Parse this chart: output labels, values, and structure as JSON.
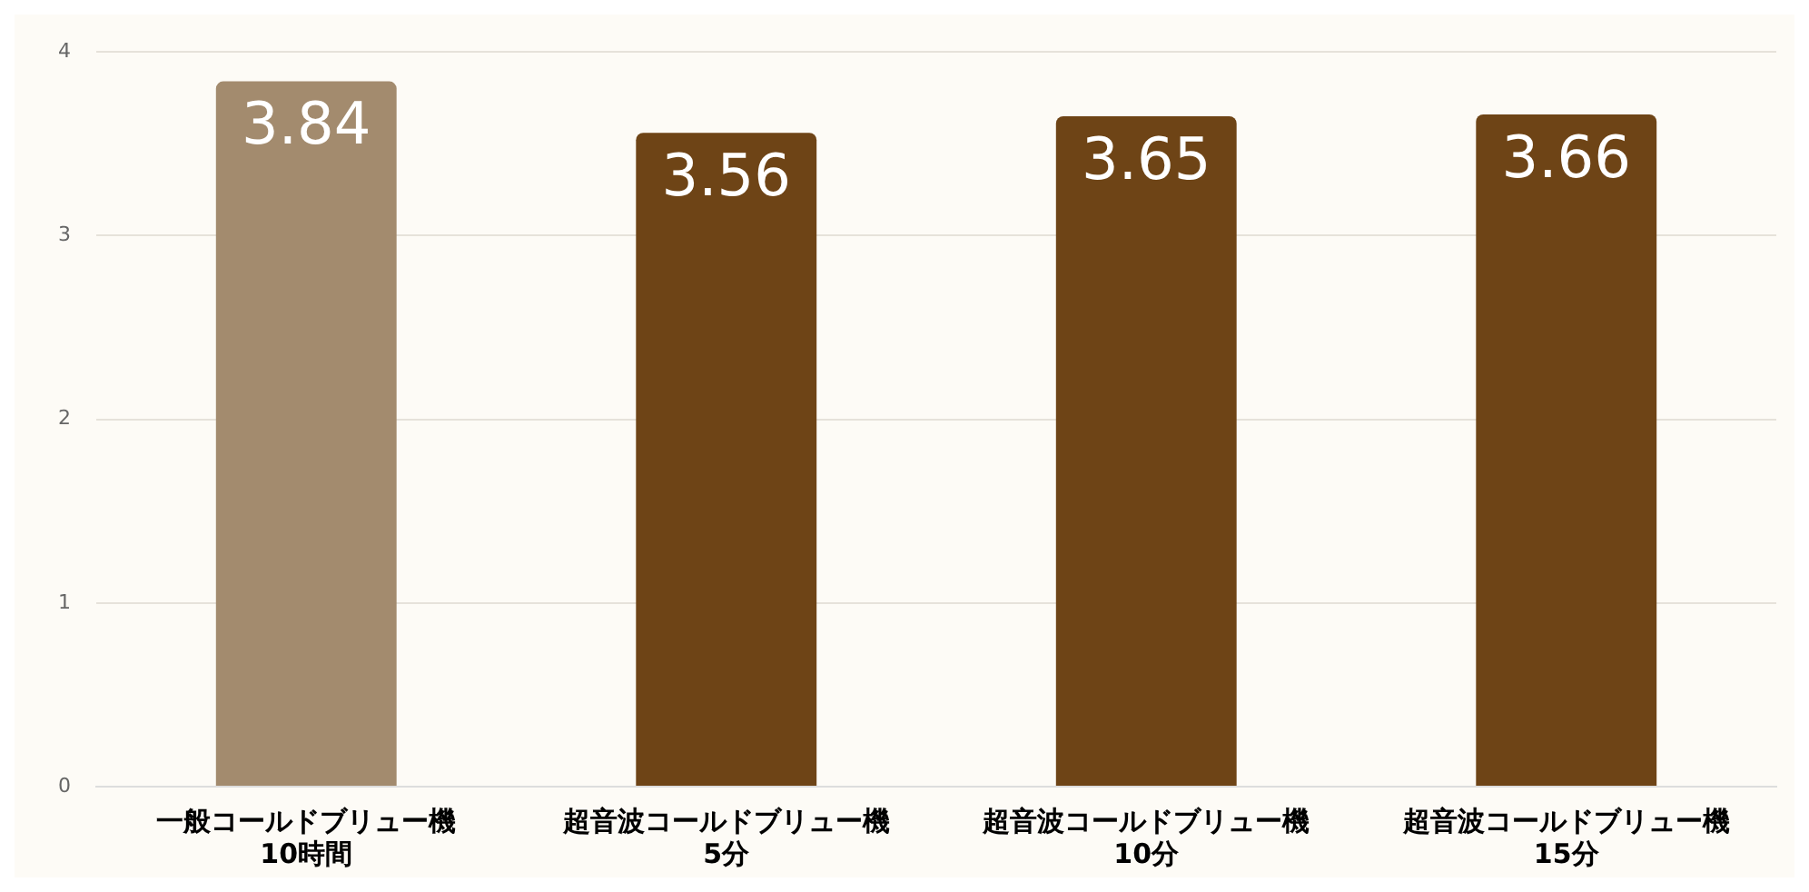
{
  "chart_data": {
    "type": "bar",
    "categories": [
      "一般コールドブリュー機\n10時間",
      "超音波コールドブリュー機\n5分",
      "超音波コールドブリュー機\n10分",
      "超音波コールドブリュー機\n15分"
    ],
    "values": [
      3.84,
      3.56,
      3.65,
      3.66
    ],
    "colors": [
      "#a38b6e",
      "#6e4416",
      "#6e4416",
      "#6e4416"
    ],
    "ylim": [
      0,
      4
    ],
    "yticks": [
      0,
      1,
      2,
      3,
      4
    ],
    "grid": "y",
    "data_labels": true,
    "legend": false
  }
}
